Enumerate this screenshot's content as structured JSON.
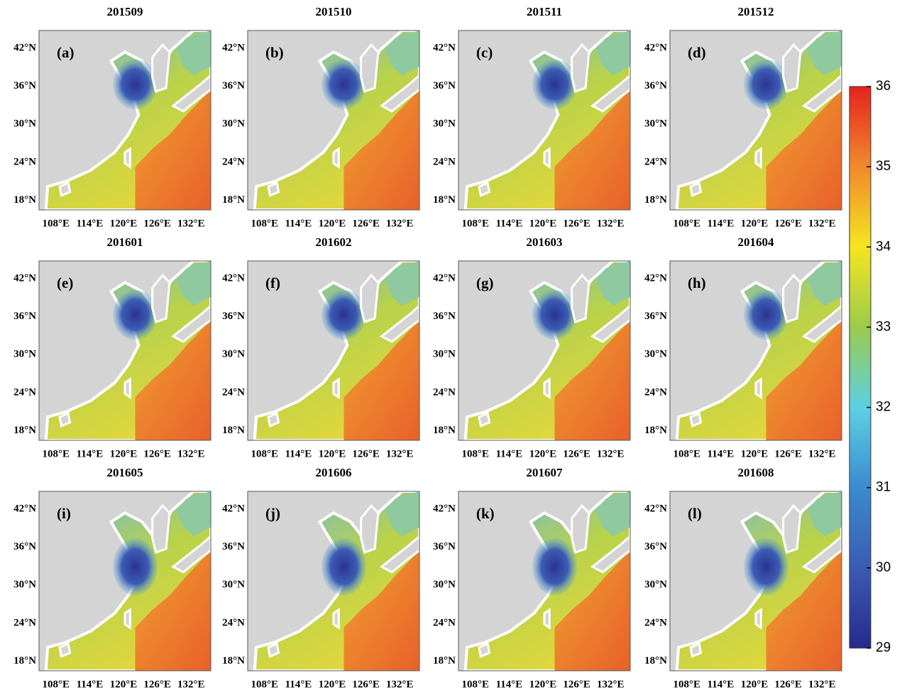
{
  "figure": {
    "panels": [
      {
        "title": "201509",
        "label": "(a)"
      },
      {
        "title": "201510",
        "label": "(b)"
      },
      {
        "title": "201511",
        "label": "(c)"
      },
      {
        "title": "201512",
        "label": "(d)"
      },
      {
        "title": "201601",
        "label": "(e)"
      },
      {
        "title": "201602",
        "label": "(f)"
      },
      {
        "title": "201603",
        "label": "(g)"
      },
      {
        "title": "201604",
        "label": "(h)"
      },
      {
        "title": "201605",
        "label": "(i)"
      },
      {
        "title": "201606",
        "label": "(j)"
      },
      {
        "title": "201607",
        "label": "(k)"
      },
      {
        "title": "201608",
        "label": "(l)"
      }
    ],
    "lonlim": [
      105,
      135.5
    ],
    "latlim": [
      16.5,
      44.8
    ],
    "lon_ticks": [
      {
        "value": 108,
        "label": "108°E"
      },
      {
        "value": 114,
        "label": "114°E"
      },
      {
        "value": 120,
        "label": "120°E"
      },
      {
        "value": 126,
        "label": "126°E"
      },
      {
        "value": 132,
        "label": "132°E"
      }
    ],
    "lat_ticks": [
      {
        "value": 18,
        "label": "18°N"
      },
      {
        "value": 24,
        "label": "24°N"
      },
      {
        "value": 30,
        "label": "30°N"
      },
      {
        "value": 36,
        "label": "36°N"
      },
      {
        "value": 42,
        "label": "42°N"
      }
    ],
    "colorbar": {
      "lim": [
        29,
        36
      ],
      "ticks": [
        29,
        30,
        31,
        32,
        33,
        34,
        35,
        36
      ],
      "colormap": [
        "#262b8c",
        "#3b5bb4",
        "#3a8bd0",
        "#5cd0e2",
        "#9ccb4c",
        "#f4e51f",
        "#f08a2c",
        "#e6221e"
      ]
    }
  }
}
